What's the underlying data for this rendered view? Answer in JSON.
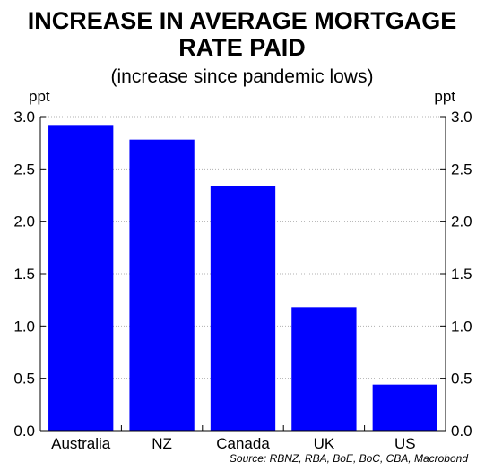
{
  "chart_data": {
    "type": "bar",
    "title_lines": [
      "INCREASE IN AVERAGE MORTGAGE",
      "RATE PAID"
    ],
    "subtitle": "(increase since pandemic lows)",
    "unit_left": "ppt",
    "unit_right": "ppt",
    "categories": [
      "Australia",
      "NZ",
      "Canada",
      "UK",
      "US"
    ],
    "values": [
      2.92,
      2.78,
      2.34,
      1.18,
      0.44
    ],
    "ylim": [
      0,
      3.0
    ],
    "yticks": [
      "0.0",
      "0.5",
      "1.0",
      "1.5",
      "2.0",
      "2.5",
      "3.0"
    ],
    "ytick_values": [
      0,
      0.5,
      1.0,
      1.5,
      2.0,
      2.5,
      3.0
    ],
    "grid": true,
    "bar_color": "#0000ff",
    "source": "Source: RBNZ, RBA, BoE, BoC, CBA, Macrobond"
  }
}
